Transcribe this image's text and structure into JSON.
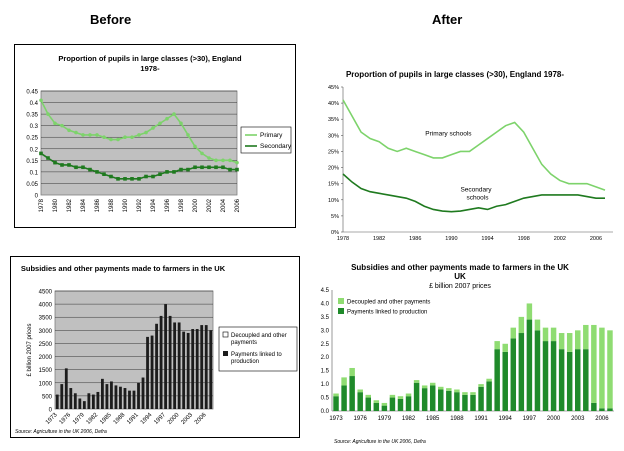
{
  "headings": {
    "before": "Before",
    "after": "After"
  },
  "chart_data": [
    {
      "id": "pupils-before",
      "type": "line",
      "title": "Proportion of pupils in large classes (>30), England 1978-",
      "x": [
        1978,
        1979,
        1980,
        1981,
        1982,
        1983,
        1984,
        1985,
        1986,
        1987,
        1988,
        1989,
        1990,
        1991,
        1992,
        1993,
        1994,
        1995,
        1996,
        1997,
        1998,
        1999,
        2000,
        2001,
        2002,
        2003,
        2004,
        2005,
        2006
      ],
      "x_tick_labels": [
        "1978",
        "1980",
        "1982",
        "1984",
        "1986",
        "1988",
        "1990",
        "1992",
        "1994",
        "1996",
        "1998",
        "2000",
        "2002",
        "2004",
        "2006"
      ],
      "series": [
        {
          "name": "Primary",
          "color": "#7dd36b",
          "values": [
            0.41,
            0.35,
            0.31,
            0.3,
            0.28,
            0.27,
            0.26,
            0.26,
            0.26,
            0.25,
            0.24,
            0.24,
            0.25,
            0.25,
            0.26,
            0.27,
            0.29,
            0.31,
            0.33,
            0.35,
            0.31,
            0.26,
            0.21,
            0.18,
            0.16,
            0.15,
            0.15,
            0.15,
            0.14
          ]
        },
        {
          "name": "Secondary",
          "color": "#1f7a1f",
          "values": [
            0.18,
            0.16,
            0.14,
            0.13,
            0.13,
            0.12,
            0.12,
            0.11,
            0.1,
            0.09,
            0.08,
            0.07,
            0.07,
            0.07,
            0.07,
            0.08,
            0.08,
            0.09,
            0.1,
            0.1,
            0.11,
            0.11,
            0.12,
            0.12,
            0.12,
            0.12,
            0.12,
            0.11,
            0.11
          ]
        }
      ],
      "y_ticks": [
        "0",
        "0.05",
        "0.1",
        "0.15",
        "0.2",
        "0.25",
        "0.3",
        "0.35",
        "0.4",
        "0.45"
      ],
      "ylim": [
        0,
        0.45
      ],
      "grid": true,
      "legend": "right"
    },
    {
      "id": "pupils-after",
      "type": "line",
      "title": "Proportion of pupils in large classes (>30), England 1978-",
      "x": [
        1978,
        1979,
        1980,
        1981,
        1982,
        1983,
        1984,
        1985,
        1986,
        1987,
        1988,
        1989,
        1990,
        1991,
        1992,
        1993,
        1994,
        1995,
        1996,
        1997,
        1998,
        1999,
        2000,
        2001,
        2002,
        2003,
        2004,
        2005,
        2006,
        2007
      ],
      "x_tick_labels": [
        "1978",
        "1982",
        "1986",
        "1990",
        "1994",
        "1998",
        "2002",
        "2006"
      ],
      "series": [
        {
          "name": "Primary schools",
          "color": "#7dd36b",
          "values": [
            0.41,
            0.36,
            0.31,
            0.29,
            0.28,
            0.26,
            0.25,
            0.26,
            0.25,
            0.24,
            0.23,
            0.23,
            0.24,
            0.25,
            0.25,
            0.27,
            0.29,
            0.31,
            0.33,
            0.34,
            0.31,
            0.26,
            0.21,
            0.18,
            0.16,
            0.15,
            0.15,
            0.15,
            0.14,
            0.13
          ]
        },
        {
          "name": "Secondary schools",
          "color": "#1f7a1f",
          "values": [
            0.18,
            0.155,
            0.135,
            0.125,
            0.12,
            0.115,
            0.11,
            0.105,
            0.095,
            0.08,
            0.07,
            0.065,
            0.063,
            0.065,
            0.07,
            0.075,
            0.07,
            0.08,
            0.085,
            0.095,
            0.105,
            0.11,
            0.115,
            0.115,
            0.115,
            0.115,
            0.115,
            0.11,
            0.105,
            0.105
          ]
        }
      ],
      "y_ticks": [
        "0%",
        "5%",
        "10%",
        "15%",
        "20%",
        "25%",
        "30%",
        "35%",
        "40%",
        "45%"
      ],
      "ylim": [
        0,
        0.45
      ],
      "grid": false
    },
    {
      "id": "subsidies-before",
      "type": "bar",
      "title": "Subsidies and other payments made to farmers in the UK",
      "ylabel": "£ billion 2007 prices",
      "years": [
        1973,
        1974,
        1975,
        1976,
        1977,
        1978,
        1979,
        1980,
        1981,
        1982,
        1983,
        1984,
        1985,
        1986,
        1987,
        1988,
        1989,
        1990,
        1991,
        1992,
        1993,
        1994,
        1995,
        1996,
        1997,
        1998,
        1999,
        2000,
        2001,
        2002,
        2003,
        2004,
        2005,
        2006,
        2007
      ],
      "x_tick_labels": [
        "1973",
        "1976",
        "1979",
        "1982",
        "1985",
        "1988",
        "1991",
        "1994",
        "1997",
        "2000",
        "2003",
        "2006"
      ],
      "series": [
        {
          "name": "Decoupled and other payments",
          "color": "#ffffff",
          "values": [
            0,
            0,
            0,
            0,
            0,
            0,
            0,
            0,
            0,
            0,
            0,
            0,
            0,
            0,
            0,
            0,
            0,
            0,
            0,
            0,
            0,
            0,
            0,
            0,
            0,
            0,
            0,
            0,
            0,
            0,
            0,
            0,
            0,
            0,
            0
          ]
        },
        {
          "name": "Payments linked to production",
          "color": "#1c1c1c",
          "values": [
            550,
            950,
            1550,
            800,
            600,
            400,
            300,
            600,
            550,
            650,
            1150,
            950,
            1050,
            900,
            850,
            800,
            700,
            700,
            1000,
            1200,
            2750,
            2800,
            3250,
            3550,
            4000,
            3550,
            3300,
            3300,
            2950,
            2900,
            3050,
            3050,
            3200,
            3200,
            3000
          ]
        }
      ],
      "y_ticks": [
        "0",
        "500",
        "1000",
        "1500",
        "2000",
        "2500",
        "3000",
        "3500",
        "4000",
        "4500"
      ],
      "ylim": [
        0,
        4500
      ],
      "legend": "right",
      "source": "Source: Agriculture in the UK 2006, Defra"
    },
    {
      "id": "subsidies-after",
      "type": "bar",
      "title": "Subsidies and other payments made to farmers in the UK",
      "subtitle": "£ billion 2007 prices",
      "years": [
        1973,
        1974,
        1975,
        1976,
        1977,
        1978,
        1979,
        1980,
        1981,
        1982,
        1983,
        1984,
        1985,
        1986,
        1987,
        1988,
        1989,
        1990,
        1991,
        1992,
        1993,
        1994,
        1995,
        1996,
        1997,
        1998,
        1999,
        2000,
        2001,
        2002,
        2003,
        2004,
        2005,
        2006,
        2007
      ],
      "x_tick_labels": [
        "1973",
        "1976",
        "1979",
        "1982",
        "1985",
        "1988",
        "1991",
        "1994",
        "1997",
        "2000",
        "2003",
        "2006"
      ],
      "series": [
        {
          "name": "Decoupled and other payments",
          "color": "#8fdc72",
          "values": [
            0.1,
            0.3,
            0.3,
            0.1,
            0.1,
            0.1,
            0.1,
            0.1,
            0.1,
            0.1,
            0.1,
            0.1,
            0.1,
            0.1,
            0.1,
            0.1,
            0.1,
            0.1,
            0.1,
            0.1,
            0.3,
            0.3,
            0.4,
            0.6,
            0.6,
            0.4,
            0.5,
            0.5,
            0.6,
            0.7,
            0.7,
            0.9,
            2.9,
            3.0,
            2.9
          ]
        },
        {
          "name": "Payments linked to production",
          "color": "#1f8a2a",
          "values": [
            0.55,
            0.95,
            1.3,
            0.7,
            0.5,
            0.3,
            0.2,
            0.5,
            0.45,
            0.55,
            1.05,
            0.85,
            0.95,
            0.8,
            0.75,
            0.7,
            0.6,
            0.6,
            0.9,
            1.1,
            2.3,
            2.2,
            2.7,
            2.9,
            3.4,
            3.0,
            2.6,
            2.6,
            2.3,
            2.2,
            2.3,
            2.3,
            0.3,
            0.1,
            0.1
          ]
        }
      ],
      "y_ticks": [
        "0.0",
        "0.5",
        "1.0",
        "1.5",
        "2.0",
        "2.5",
        "3.0",
        "3.5",
        "4.0",
        "4.5"
      ],
      "ylim": [
        0,
        4.5
      ],
      "legend": "top-left",
      "source": "Source: Agriculture in the UK 2006, Defra"
    }
  ]
}
